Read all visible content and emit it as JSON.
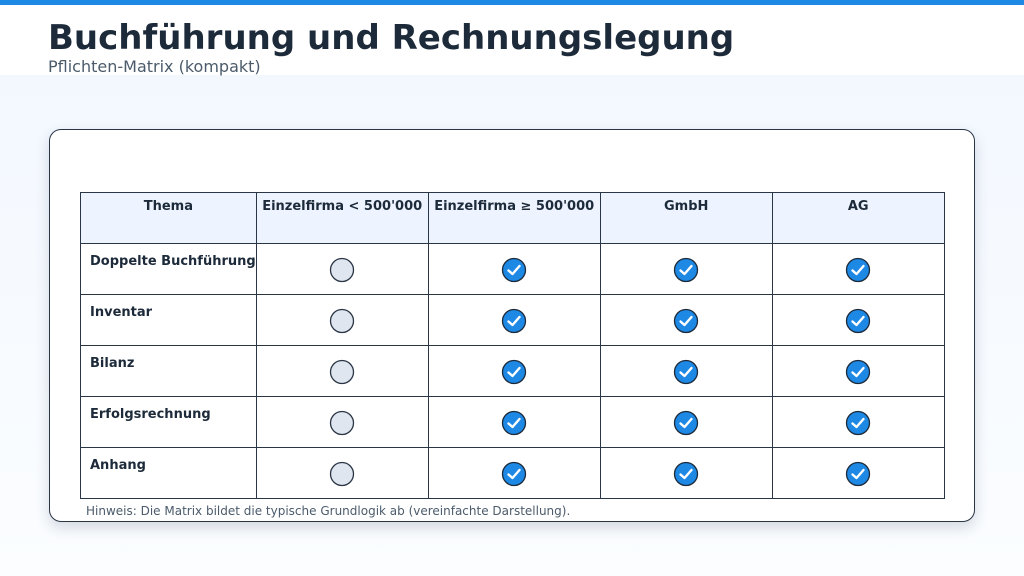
{
  "header": {
    "title": "Buchführung und Rechnungslegung",
    "subtitle": "Pflichten-Matrix (kompakt)"
  },
  "table": {
    "columns": [
      "Thema",
      "Einzelfirma < 500'000",
      "Einzelfirma ≥ 500'000",
      "GmbH",
      "AG"
    ],
    "rows": [
      {
        "label": "Doppelte Buchführung",
        "cells": [
          false,
          true,
          true,
          true
        ]
      },
      {
        "label": "Inventar",
        "cells": [
          false,
          true,
          true,
          true
        ]
      },
      {
        "label": "Bilanz",
        "cells": [
          false,
          true,
          true,
          true
        ]
      },
      {
        "label": "Erfolgsrechnung",
        "cells": [
          false,
          true,
          true,
          true
        ]
      },
      {
        "label": "Anhang",
        "cells": [
          false,
          true,
          true,
          true
        ]
      }
    ]
  },
  "note": "Hinweis: Die Matrix bildet die typische Grundlogik ab (vereinfachte Darstellung)."
}
